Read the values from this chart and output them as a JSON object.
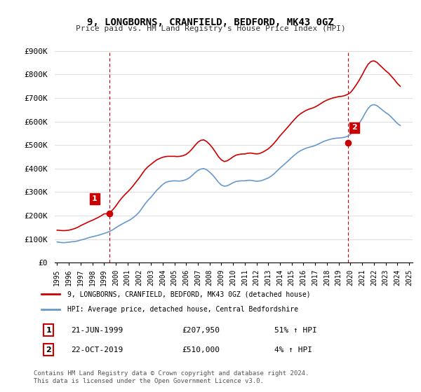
{
  "title": "9, LONGBORNS, CRANFIELD, BEDFORD, MK43 0GZ",
  "subtitle": "Price paid vs. HM Land Registry's House Price Index (HPI)",
  "ylabel": "",
  "background_color": "#ffffff",
  "plot_bg_color": "#ffffff",
  "grid_color": "#e0e0e0",
  "legend_label_red": "9, LONGBORNS, CRANFIELD, BEDFORD, MK43 0GZ (detached house)",
  "legend_label_blue": "HPI: Average price, detached house, Central Bedfordshire",
  "sale1_date_num": 1999.47,
  "sale1_price": 207950,
  "sale1_label": "21-JUN-1999",
  "sale1_amount": "£207,950",
  "sale1_hpi": "51% ↑ HPI",
  "sale2_date_num": 2019.81,
  "sale2_price": 510000,
  "sale2_label": "22-OCT-2019",
  "sale2_amount": "£510,000",
  "sale2_hpi": "4% ↑ HPI",
  "footnote": "Contains HM Land Registry data © Crown copyright and database right 2024.\nThis data is licensed under the Open Government Licence v3.0.",
  "hpi_years": [
    1995.0,
    1995.25,
    1995.5,
    1995.75,
    1996.0,
    1996.25,
    1996.5,
    1996.75,
    1997.0,
    1997.25,
    1997.5,
    1997.75,
    1998.0,
    1998.25,
    1998.5,
    1998.75,
    1999.0,
    1999.25,
    1999.5,
    1999.75,
    2000.0,
    2000.25,
    2000.5,
    2000.75,
    2001.0,
    2001.25,
    2001.5,
    2001.75,
    2002.0,
    2002.25,
    2002.5,
    2002.75,
    2003.0,
    2003.25,
    2003.5,
    2003.75,
    2004.0,
    2004.25,
    2004.5,
    2004.75,
    2005.0,
    2005.25,
    2005.5,
    2005.75,
    2006.0,
    2006.25,
    2006.5,
    2006.75,
    2007.0,
    2007.25,
    2007.5,
    2007.75,
    2008.0,
    2008.25,
    2008.5,
    2008.75,
    2009.0,
    2009.25,
    2009.5,
    2009.75,
    2010.0,
    2010.25,
    2010.5,
    2010.75,
    2011.0,
    2011.25,
    2011.5,
    2011.75,
    2012.0,
    2012.25,
    2012.5,
    2012.75,
    2013.0,
    2013.25,
    2013.5,
    2013.75,
    2014.0,
    2014.25,
    2014.5,
    2014.75,
    2015.0,
    2015.25,
    2015.5,
    2015.75,
    2016.0,
    2016.25,
    2016.5,
    2016.75,
    2017.0,
    2017.25,
    2017.5,
    2017.75,
    2018.0,
    2018.25,
    2018.5,
    2018.75,
    2019.0,
    2019.25,
    2019.5,
    2019.75,
    2020.0,
    2020.25,
    2020.5,
    2020.75,
    2021.0,
    2021.25,
    2021.5,
    2021.75,
    2022.0,
    2022.25,
    2022.5,
    2022.75,
    2023.0,
    2023.25,
    2023.5,
    2023.75,
    2024.0,
    2024.25
  ],
  "hpi_values": [
    88000,
    86000,
    85000,
    85500,
    87000,
    88500,
    90000,
    92000,
    96000,
    99000,
    103000,
    107000,
    110000,
    113000,
    116000,
    120000,
    124000,
    128000,
    133000,
    140000,
    148000,
    156000,
    163000,
    170000,
    176000,
    183000,
    192000,
    202000,
    215000,
    232000,
    250000,
    265000,
    278000,
    293000,
    308000,
    320000,
    332000,
    341000,
    345000,
    347000,
    348000,
    347000,
    347000,
    349000,
    353000,
    360000,
    370000,
    382000,
    392000,
    398000,
    400000,
    395000,
    385000,
    373000,
    358000,
    342000,
    330000,
    325000,
    327000,
    333000,
    340000,
    345000,
    347000,
    348000,
    348000,
    350000,
    350000,
    348000,
    346000,
    347000,
    350000,
    355000,
    360000,
    368000,
    378000,
    390000,
    402000,
    413000,
    424000,
    435000,
    447000,
    458000,
    468000,
    476000,
    482000,
    487000,
    491000,
    494000,
    498000,
    504000,
    510000,
    516000,
    520000,
    524000,
    527000,
    529000,
    530000,
    531000,
    533000,
    537000,
    545000,
    558000,
    574000,
    592000,
    612000,
    635000,
    655000,
    668000,
    672000,
    668000,
    658000,
    648000,
    638000,
    630000,
    618000,
    605000,
    592000,
    583000
  ],
  "price_years": [
    1995.0,
    1995.25,
    1995.5,
    1995.75,
    1996.0,
    1996.25,
    1996.5,
    1996.75,
    1997.0,
    1997.25,
    1997.5,
    1997.75,
    1998.0,
    1998.25,
    1998.5,
    1998.75,
    1999.0,
    1999.25,
    1999.5,
    1999.75,
    2000.0,
    2000.25,
    2000.5,
    2000.75,
    2001.0,
    2001.25,
    2001.5,
    2001.75,
    2002.0,
    2002.25,
    2002.5,
    2002.75,
    2003.0,
    2003.25,
    2003.5,
    2003.75,
    2004.0,
    2004.25,
    2004.5,
    2004.75,
    2005.0,
    2005.25,
    2005.5,
    2005.75,
    2006.0,
    2006.25,
    2006.5,
    2006.75,
    2007.0,
    2007.25,
    2007.5,
    2007.75,
    2008.0,
    2008.25,
    2008.5,
    2008.75,
    2009.0,
    2009.25,
    2009.5,
    2009.75,
    2010.0,
    2010.25,
    2010.5,
    2010.75,
    2011.0,
    2011.25,
    2011.5,
    2011.75,
    2012.0,
    2012.25,
    2012.5,
    2012.75,
    2013.0,
    2013.25,
    2013.5,
    2013.75,
    2014.0,
    2014.25,
    2014.5,
    2014.75,
    2015.0,
    2015.25,
    2015.5,
    2015.75,
    2016.0,
    2016.25,
    2016.5,
    2016.75,
    2017.0,
    2017.25,
    2017.5,
    2017.75,
    2018.0,
    2018.25,
    2018.5,
    2018.75,
    2019.0,
    2019.25,
    2019.5,
    2019.75,
    2020.0,
    2020.25,
    2020.5,
    2020.75,
    2021.0,
    2021.25,
    2021.5,
    2021.75,
    2022.0,
    2022.25,
    2022.5,
    2022.75,
    2023.0,
    2023.25,
    2023.5,
    2023.75,
    2024.0,
    2024.25
  ],
  "price_values": [
    138000,
    137000,
    136000,
    136500,
    138000,
    141000,
    145000,
    150000,
    157000,
    163000,
    169000,
    175000,
    180000,
    186000,
    192000,
    199000,
    207000,
    207950,
    213000,
    225000,
    240000,
    258000,
    274000,
    288000,
    300000,
    313000,
    328000,
    344000,
    360000,
    378000,
    395000,
    408000,
    418000,
    428000,
    437000,
    443000,
    448000,
    451000,
    452000,
    452000,
    452000,
    451000,
    452000,
    455000,
    460000,
    470000,
    483000,
    498000,
    512000,
    520000,
    522000,
    515000,
    503000,
    488000,
    470000,
    451000,
    437000,
    430000,
    433000,
    441000,
    450000,
    457000,
    460000,
    462000,
    462000,
    465000,
    466000,
    464000,
    462000,
    464000,
    469000,
    476000,
    484000,
    495000,
    508000,
    523000,
    539000,
    553000,
    567000,
    581000,
    596000,
    610000,
    623000,
    633000,
    641000,
    648000,
    653000,
    657000,
    662000,
    669000,
    677000,
    685000,
    691000,
    696000,
    700000,
    703000,
    706000,
    707000,
    710000,
    715000,
    723000,
    738000,
    756000,
    776000,
    798000,
    822000,
    843000,
    855000,
    858000,
    852000,
    840000,
    828000,
    816000,
    806000,
    792000,
    778000,
    762000,
    750000
  ],
  "ylim": [
    0,
    900000
  ],
  "xlim": [
    1994.8,
    2025.3
  ],
  "yticks": [
    0,
    100000,
    200000,
    300000,
    400000,
    500000,
    600000,
    700000,
    800000,
    900000
  ],
  "ytick_labels": [
    "£0",
    "£100K",
    "£200K",
    "£300K",
    "£400K",
    "£500K",
    "£600K",
    "£700K",
    "£800K",
    "£900K"
  ],
  "xticks": [
    1995,
    1996,
    1997,
    1998,
    1999,
    2000,
    2001,
    2002,
    2003,
    2004,
    2005,
    2006,
    2007,
    2008,
    2009,
    2010,
    2011,
    2012,
    2013,
    2014,
    2015,
    2016,
    2017,
    2018,
    2019,
    2020,
    2021,
    2022,
    2023,
    2024,
    2025
  ],
  "red_color": "#cc0000",
  "blue_color": "#6699cc",
  "vline_color": "#cc0000",
  "marker_color": "#cc0000"
}
